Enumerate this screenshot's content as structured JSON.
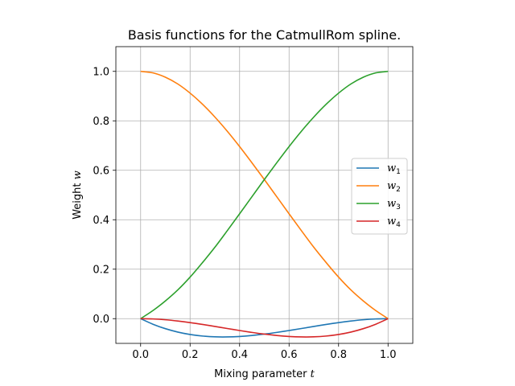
{
  "chart_data": {
    "type": "line",
    "title": "Basis functions for the CatmullRom spline.",
    "xlabel": {
      "prefix": "Mixing parameter ",
      "var": "t"
    },
    "ylabel": {
      "prefix": "Weight ",
      "var": "w"
    },
    "xlim": [
      -0.1,
      1.1
    ],
    "ylim": [
      -0.1,
      1.1
    ],
    "xticks": [
      0.0,
      0.2,
      0.4,
      0.6,
      0.8,
      1.0
    ],
    "yticks": [
      0.0,
      0.2,
      0.4,
      0.6,
      0.8,
      1.0
    ],
    "xtick_labels": [
      "0.0",
      "0.2",
      "0.4",
      "0.6",
      "0.8",
      "1.0"
    ],
    "ytick_labels": [
      "0.0",
      "0.2",
      "0.4",
      "0.6",
      "0.8",
      "1.0"
    ],
    "grid": true,
    "legend_position": "center-right",
    "x": [
      0.0,
      0.05,
      0.1,
      0.15,
      0.2,
      0.25,
      0.3,
      0.35,
      0.4,
      0.45,
      0.5,
      0.55,
      0.6,
      0.65,
      0.7,
      0.75,
      0.8,
      0.85,
      0.9,
      0.95,
      1.0
    ],
    "series": [
      {
        "name": "w",
        "sub": "1",
        "color": "#1f77b4",
        "values": [
          0.0,
          -0.0226,
          -0.0405,
          -0.0542,
          -0.064,
          -0.0703,
          -0.0735,
          -0.0739,
          -0.072,
          -0.068,
          -0.0625,
          -0.0557,
          -0.048,
          -0.0398,
          -0.0315,
          -0.0234,
          -0.016,
          -0.0096,
          -0.0045,
          -0.0012,
          0.0
        ]
      },
      {
        "name": "w",
        "sub": "2",
        "color": "#ff7f0e",
        "values": [
          1.0,
          0.9939,
          0.9765,
          0.9492,
          0.912,
          0.8672,
          0.8155,
          0.7582,
          0.696,
          0.6302,
          0.5625,
          0.4933,
          0.424,
          0.3555,
          0.2885,
          0.2266,
          0.168,
          0.1159,
          0.0715,
          0.0329,
          0.0
        ]
      },
      {
        "name": "w",
        "sub": "3",
        "color": "#2ca02c",
        "values": [
          0.0,
          0.0329,
          0.0715,
          0.1159,
          0.168,
          0.2266,
          0.2885,
          0.3555,
          0.424,
          0.4933,
          0.5625,
          0.6302,
          0.696,
          0.7582,
          0.8155,
          0.8672,
          0.912,
          0.9492,
          0.9765,
          0.9939,
          1.0
        ]
      },
      {
        "name": "w",
        "sub": "4",
        "color": "#d62728",
        "values": [
          0.0,
          -0.0012,
          -0.0045,
          -0.0096,
          -0.016,
          -0.0234,
          -0.0315,
          -0.0398,
          -0.048,
          -0.0557,
          -0.0625,
          -0.068,
          -0.072,
          -0.0739,
          -0.0735,
          -0.0703,
          -0.064,
          -0.0542,
          -0.0405,
          -0.0226,
          0.0
        ]
      }
    ]
  }
}
